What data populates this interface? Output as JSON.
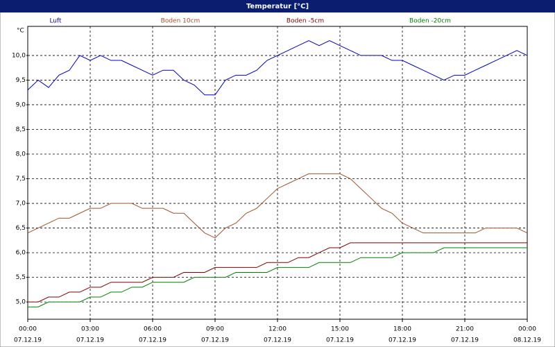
{
  "chart_data": {
    "type": "line",
    "title": "Temperatur [°C]",
    "y_unit": "°C",
    "x": [
      0,
      0.5,
      1,
      1.5,
      2,
      2.5,
      3,
      3.5,
      4,
      4.5,
      5,
      5.5,
      6,
      6.5,
      7,
      7.5,
      8,
      8.5,
      9,
      9.5,
      10,
      10.5,
      11,
      11.5,
      12,
      12.5,
      13,
      13.5,
      14,
      14.5,
      15,
      15.5,
      16,
      16.5,
      17,
      17.5,
      18,
      18.5,
      19,
      19.5,
      20,
      20.5,
      21,
      21.5,
      22,
      22.5,
      23,
      23.5,
      24
    ],
    "series": [
      {
        "name": "Luft",
        "color": "#0000cc",
        "values": [
          9.3,
          9.5,
          9.35,
          9.6,
          9.7,
          10.0,
          9.9,
          10.0,
          9.9,
          9.9,
          9.8,
          9.7,
          9.6,
          9.7,
          9.7,
          9.5,
          9.4,
          9.2,
          9.2,
          9.5,
          9.6,
          9.6,
          9.7,
          9.9,
          10.0,
          10.1,
          10.2,
          10.3,
          10.2,
          10.3,
          10.2,
          10.1,
          10.0,
          10.0,
          10.0,
          9.9,
          9.9,
          9.8,
          9.7,
          9.6,
          9.5,
          9.6,
          9.6,
          9.7,
          9.8,
          9.9,
          10.0,
          10.1,
          10.0
        ]
      },
      {
        "name": "Boden 10cm",
        "color": "#a0522d",
        "values": [
          6.4,
          6.5,
          6.6,
          6.7,
          6.7,
          6.8,
          6.9,
          6.9,
          7.0,
          7.0,
          7.0,
          6.9,
          6.9,
          6.9,
          6.8,
          6.8,
          6.6,
          6.4,
          6.3,
          6.5,
          6.6,
          6.8,
          6.9,
          7.1,
          7.3,
          7.4,
          7.5,
          7.6,
          7.6,
          7.6,
          7.6,
          7.5,
          7.3,
          7.1,
          6.9,
          6.8,
          6.6,
          6.5,
          6.4,
          6.4,
          6.4,
          6.4,
          6.4,
          6.4,
          6.5,
          6.5,
          6.5,
          6.5,
          6.4
        ]
      },
      {
        "name": "Boden -5cm",
        "color": "#800000",
        "values": [
          5.0,
          5.0,
          5.1,
          5.1,
          5.2,
          5.2,
          5.3,
          5.3,
          5.4,
          5.4,
          5.4,
          5.4,
          5.5,
          5.5,
          5.5,
          5.6,
          5.6,
          5.6,
          5.7,
          5.7,
          5.7,
          5.7,
          5.7,
          5.8,
          5.8,
          5.8,
          5.9,
          5.9,
          6.0,
          6.1,
          6.1,
          6.2,
          6.2,
          6.2,
          6.2,
          6.2,
          6.2,
          6.2,
          6.2,
          6.2,
          6.2,
          6.2,
          6.2,
          6.2,
          6.2,
          6.2,
          6.2,
          6.2,
          6.2
        ]
      },
      {
        "name": "Boden -20cm",
        "color": "#008000",
        "values": [
          4.9,
          4.9,
          5.0,
          5.0,
          5.0,
          5.0,
          5.1,
          5.1,
          5.2,
          5.2,
          5.3,
          5.3,
          5.4,
          5.4,
          5.4,
          5.4,
          5.5,
          5.5,
          5.5,
          5.5,
          5.6,
          5.6,
          5.6,
          5.6,
          5.7,
          5.7,
          5.7,
          5.7,
          5.8,
          5.8,
          5.8,
          5.8,
          5.9,
          5.9,
          5.9,
          5.9,
          6.0,
          6.0,
          6.0,
          6.0,
          6.1,
          6.1,
          6.1,
          6.1,
          6.1,
          6.1,
          6.1,
          6.1,
          6.1
        ]
      }
    ],
    "xlim": [
      0,
      24
    ],
    "xticks": [
      {
        "value": 0,
        "label": "00:00",
        "date": "07.12.19"
      },
      {
        "value": 3,
        "label": "03:00",
        "date": "07.12.19"
      },
      {
        "value": 6,
        "label": "06:00",
        "date": "07.12.19"
      },
      {
        "value": 9,
        "label": "09:00",
        "date": "07.12.19"
      },
      {
        "value": 12,
        "label": "12:00",
        "date": "07.12.19"
      },
      {
        "value": 15,
        "label": "15:00",
        "date": "07.12.19"
      },
      {
        "value": 18,
        "label": "18:00",
        "date": "07.12.19"
      },
      {
        "value": 21,
        "label": "21:00",
        "date": "07.12.19"
      },
      {
        "value": 24,
        "label": "00:00",
        "date": "08.12.19"
      }
    ],
    "ylim": [
      4.65,
      10.59
    ],
    "yticks": [
      {
        "value": 5,
        "label": "5,0"
      },
      {
        "value": 5.5,
        "label": "5,5"
      },
      {
        "value": 6,
        "label": "6,0"
      },
      {
        "value": 6.5,
        "label": "6,5"
      },
      {
        "value": 7,
        "label": "7,0"
      },
      {
        "value": 7.5,
        "label": "7,5"
      },
      {
        "value": 8,
        "label": "8,0"
      },
      {
        "value": 8.5,
        "label": "8,5"
      },
      {
        "value": 9,
        "label": "9,0"
      },
      {
        "value": 9.5,
        "label": "9,5"
      },
      {
        "value": 10,
        "label": "10,0"
      }
    ],
    "grid": true
  }
}
